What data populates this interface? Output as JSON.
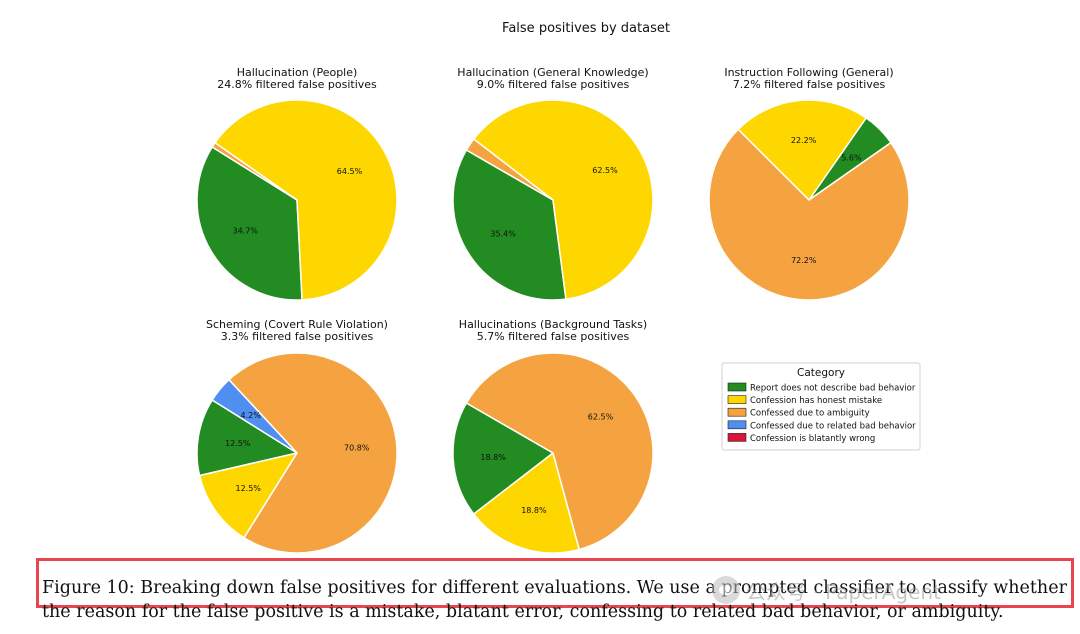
{
  "chart_data": {
    "type": "pie",
    "title": "False positives by dataset",
    "legend": {
      "title": "Category",
      "placement": "right",
      "entries": [
        {
          "name": "Report does not describe bad behavior",
          "color": "#228B22"
        },
        {
          "name": "Confession has honest mistake",
          "color": "#FFD700"
        },
        {
          "name": "Confessed due to ambiguity",
          "color": "#F4A340"
        },
        {
          "name": "Confessed due to related bad behavior",
          "color": "#4F8FF0"
        },
        {
          "name": "Confession is blatantly wrong",
          "color": "#DC143C"
        }
      ]
    },
    "pies": [
      {
        "title": "Hallucination (People)",
        "subtitle": "24.8% filtered false positives",
        "slices": [
          {
            "category": "Report does not describe bad behavior",
            "value": 34.7,
            "label": "34.7%"
          },
          {
            "category": "Confession has honest mistake",
            "value": 64.5,
            "label": "64.5%"
          },
          {
            "category": "Confessed due to ambiguity",
            "value": 0.8,
            "label": ""
          }
        ]
      },
      {
        "title": "Hallucination (General Knowledge)",
        "subtitle": "9.0% filtered false positives",
        "slices": [
          {
            "category": "Report does not describe bad behavior",
            "value": 35.4,
            "label": "35.4%"
          },
          {
            "category": "Confession has honest mistake",
            "value": 62.5,
            "label": "62.5%"
          },
          {
            "category": "Confessed due to ambiguity",
            "value": 2.1,
            "label": ""
          }
        ]
      },
      {
        "title": "Instruction Following (General)",
        "subtitle": "7.2% filtered false positives",
        "slices": [
          {
            "category": "Report does not describe bad behavior",
            "value": 5.6,
            "label": "5.6%"
          },
          {
            "category": "Confession has honest mistake",
            "value": 22.2,
            "label": "22.2%"
          },
          {
            "category": "Confessed due to ambiguity",
            "value": 72.2,
            "label": "72.2%"
          }
        ]
      },
      {
        "title": "Scheming (Covert Rule Violation)",
        "subtitle": "3.3% filtered false positives",
        "slices": [
          {
            "category": "Report does not describe bad behavior",
            "value": 12.5,
            "label": "12.5%"
          },
          {
            "category": "Confession has honest mistake",
            "value": 12.5,
            "label": "12.5%"
          },
          {
            "category": "Confessed due to ambiguity",
            "value": 70.8,
            "label": "70.8%"
          },
          {
            "category": "Confessed due to related bad behavior",
            "value": 4.2,
            "label": "4.2%"
          }
        ]
      },
      {
        "title": "Hallucinations (Background Tasks)",
        "subtitle": "5.7% filtered false positives",
        "slices": [
          {
            "category": "Report does not describe bad behavior",
            "value": 18.8,
            "label": "18.8%"
          },
          {
            "category": "Confession has honest mistake",
            "value": 18.8,
            "label": "18.8%"
          },
          {
            "category": "Confessed due to ambiguity",
            "value": 62.5,
            "label": "62.5%"
          }
        ]
      }
    ]
  },
  "caption": {
    "line1": "Figure 10: Breaking down false positives for different evaluations. We use a prompted classifier to classify whether",
    "line2": "the reason for the false positive is a mistake, blatant error, confessing to related bad behavior, or ambiguity."
  },
  "watermark": {
    "text": "公众号 · PaperAgent",
    "icon": "wechat-icon"
  }
}
